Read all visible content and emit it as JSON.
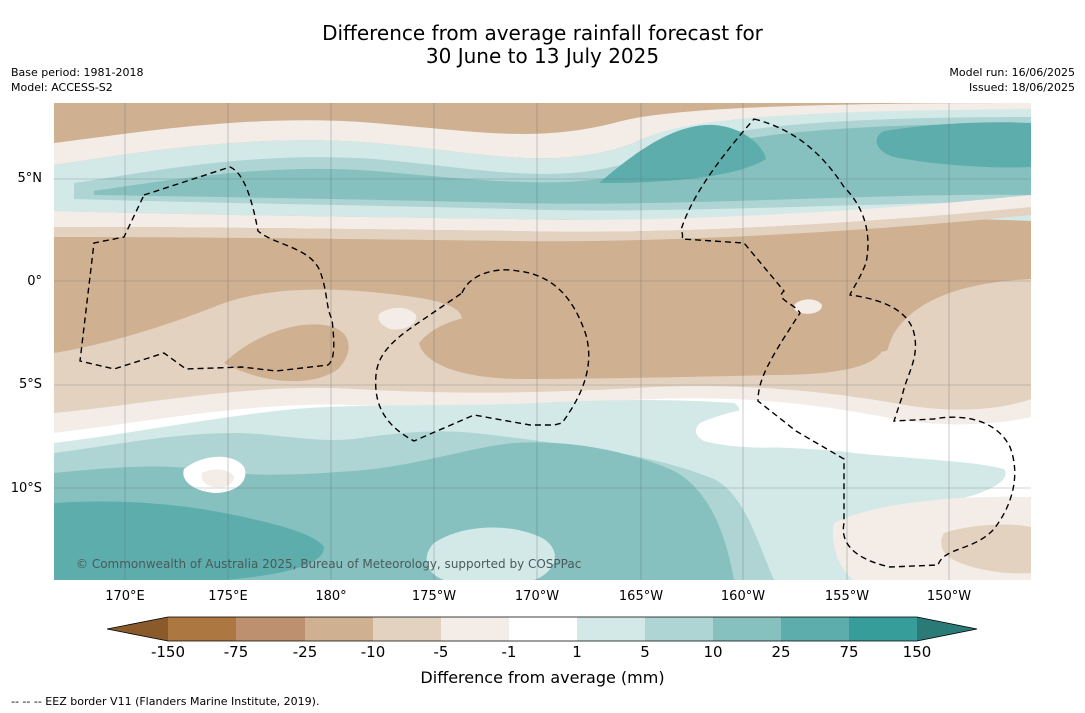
{
  "title_line1": "Difference from average rainfall forecast for",
  "title_line2": "30 June to 13 July 2025",
  "base_period": "Base period: 1981-2018",
  "model": "Model: ACCESS-S2",
  "model_run": "Model run: 16/06/2025",
  "issued": "Issued: 18/06/2025",
  "map": {
    "lat_labels": [
      "5°N",
      "0°",
      "5°S",
      "10°S"
    ],
    "lon_labels": [
      "170°E",
      "175°E",
      "180°",
      "175°W",
      "170°W",
      "165°W",
      "160°W",
      "155°W",
      "150°W"
    ],
    "copyright": "© Commonwealth of Australia 2025, Bureau of Meteorology, supported by COSPPac",
    "colors": {
      "dry_strong": "#cfb091",
      "dry_light": "#e4d2c0",
      "dry_faint": "#f4ede7",
      "neutral": "#ffffff",
      "wet_faint": "#d3e9e8",
      "wet_light": "#aed5d4",
      "wet_mid": "#86c1c0",
      "wet_strong": "#5dadad",
      "graticule": "#5a6a6a",
      "eez_border": "#000000"
    }
  },
  "colorbar": {
    "title": "Difference from average (mm)",
    "labels": [
      "-150",
      "-75",
      "-25",
      "-10",
      "-5",
      "-1",
      "1",
      "5",
      "10",
      "25",
      "75",
      "150"
    ],
    "colors": [
      "#8b5a2b",
      "#ac7740",
      "#bd9070",
      "#cfb091",
      "#e4d2c0",
      "#f4ede7",
      "#ffffff",
      "#d3e9e8",
      "#aed5d4",
      "#86c1c0",
      "#5dadad",
      "#369d9a",
      "#2a7a78"
    ]
  },
  "eez_note": "--  --  -- EEZ border V11 (Flanders Marine Institute, 2019)."
}
